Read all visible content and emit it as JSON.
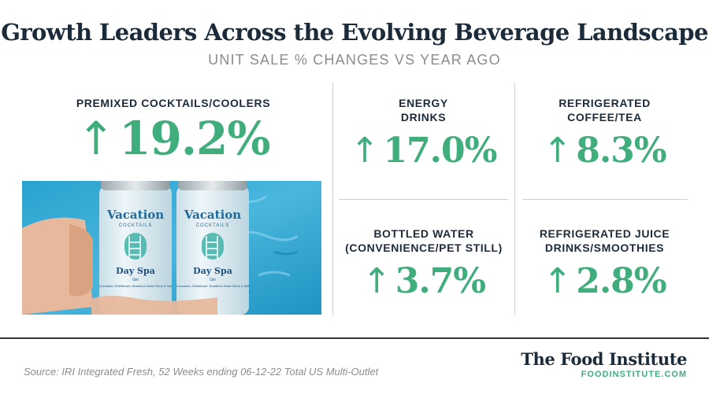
{
  "header": {
    "title": "Growth Leaders Across the Evolving Beverage Landscape",
    "subtitle": "UNIT SALE % CHANGES VS YEAR AGO"
  },
  "colors": {
    "accent": "#3fae7c",
    "navy": "#1c2b3a",
    "muted": "#8c8c8c"
  },
  "arrow_icon": "up-arrow-icon",
  "categories": {
    "premixed": {
      "label": "PREMIXED COCKTAILS/COOLERS",
      "value": "19.2%"
    },
    "energy": {
      "label": "ENERGY\nDRINKS",
      "value": "17.0%"
    },
    "coffee": {
      "label": "REFRIGERATED\nCOFFEE/TEA",
      "value": "8.3%"
    },
    "water": {
      "label": "BOTTLED WATER\n(CONVENIENCE/PET STILL)",
      "value": "3.7%"
    },
    "juice": {
      "label": "REFRIGERATED JUICE\nDRINKS/SMOOTHIES",
      "value": "2.8%"
    }
  },
  "photo": {
    "brand": "Vacation",
    "brand_sub": "COCKTAILS",
    "product": "Day Spa",
    "product_sub": "Gin",
    "ingredients": "Cucumber, Elderflower, Buddha's Hand Citrus & Salt"
  },
  "footer": {
    "source": "Source: IRI Integrated Fresh, 52 Weeks ending 06-12-22 Total US Multi-Outlet",
    "brand": "The Food Institute",
    "url": "FOODINSTITUTE.COM"
  }
}
